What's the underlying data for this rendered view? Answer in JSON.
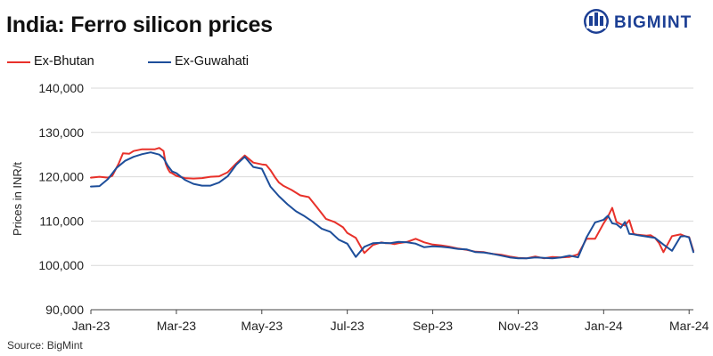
{
  "brand": {
    "name": "BIGMINT",
    "color": "#1c3f94"
  },
  "source": "Source: BigMint",
  "chart_data": {
    "type": "line",
    "title": "India: Ferro silicon prices",
    "xlabel": "",
    "ylabel": "Prices in INR/t",
    "ylim": [
      90000,
      140000
    ],
    "yticks": [
      90000,
      100000,
      110000,
      120000,
      130000,
      140000
    ],
    "ytick_labels": [
      "90,000",
      "100,000",
      "110,000",
      "120,000",
      "130,000",
      "140,000"
    ],
    "xlim": [
      0,
      14.1
    ],
    "x_unit": "months since Jan-2023",
    "xticks": [
      0,
      2,
      4,
      6,
      8,
      10,
      12,
      14
    ],
    "xtick_labels": [
      "Jan-23",
      "Mar-23",
      "May-23",
      "Jul-23",
      "Sep-23",
      "Nov-23",
      "Jan-24",
      "Mar-24"
    ],
    "grid": "horizontal",
    "legend_position": "top-left",
    "series": [
      {
        "name": "Ex-Bhutan",
        "color": "#e8312a",
        "x": [
          0,
          0.2,
          0.4,
          0.5,
          0.65,
          0.75,
          0.9,
          1.0,
          1.2,
          1.4,
          1.5,
          1.6,
          1.7,
          1.75,
          1.8,
          1.85,
          1.9,
          2.0,
          2.2,
          2.4,
          2.6,
          2.8,
          3.0,
          3.2,
          3.4,
          3.6,
          3.8,
          4.0,
          4.1,
          4.2,
          4.3,
          4.4,
          4.5,
          4.7,
          4.9,
          5.1,
          5.3,
          5.5,
          5.7,
          5.9,
          6.0,
          6.2,
          6.4,
          6.6,
          6.8,
          6.9,
          7.0,
          7.1,
          7.2,
          7.4,
          7.6,
          7.8,
          8.0,
          8.2,
          8.4,
          8.6,
          8.8,
          9.0,
          9.2,
          9.4,
          9.6,
          9.8,
          10.0,
          10.2,
          10.4,
          10.5,
          10.6,
          10.8,
          11.0,
          11.2,
          11.4,
          11.6,
          11.8,
          12.0,
          12.1,
          12.2,
          12.3,
          12.4,
          12.5,
          12.6,
          12.7,
          12.8,
          13.0,
          13.1,
          13.2,
          13.3,
          13.4,
          13.6,
          13.8,
          13.9,
          14.0,
          14.1
        ],
        "values": [
          119800,
          120000,
          119800,
          120200,
          123000,
          125300,
          125200,
          125800,
          126200,
          126200,
          126200,
          126500,
          125800,
          123000,
          121800,
          121000,
          120800,
          120200,
          119700,
          119600,
          119700,
          120000,
          120100,
          121000,
          123000,
          124800,
          123200,
          122800,
          122700,
          121500,
          120000,
          118700,
          118000,
          117000,
          115800,
          115400,
          113000,
          110500,
          109800,
          108600,
          107300,
          106200,
          102800,
          104600,
          105200,
          105000,
          105000,
          104800,
          105000,
          105300,
          106000,
          105200,
          104700,
          104500,
          104200,
          103800,
          103500,
          103100,
          103000,
          102600,
          102400,
          102000,
          101700,
          101600,
          102000,
          101800,
          101600,
          101900,
          101800,
          101900,
          102500,
          106000,
          106000,
          109500,
          111000,
          113000,
          109800,
          109300,
          109000,
          110200,
          107100,
          106900,
          106700,
          106800,
          106200,
          105000,
          103000,
          106600,
          107000,
          106600,
          106400,
          103300
        ]
      },
      {
        "name": "Ex-Guwahati",
        "color": "#1d4e9a",
        "x": [
          0,
          0.2,
          0.4,
          0.6,
          0.8,
          1.0,
          1.2,
          1.4,
          1.6,
          1.7,
          1.8,
          1.9,
          2.0,
          2.2,
          2.4,
          2.6,
          2.8,
          3.0,
          3.2,
          3.4,
          3.6,
          3.8,
          4.0,
          4.2,
          4.4,
          4.6,
          4.8,
          5.0,
          5.2,
          5.4,
          5.6,
          5.8,
          6.0,
          6.2,
          6.4,
          6.6,
          6.8,
          7.0,
          7.2,
          7.4,
          7.6,
          7.8,
          8.0,
          8.2,
          8.4,
          8.6,
          8.8,
          9.0,
          9.2,
          9.4,
          9.6,
          9.8,
          10.0,
          10.2,
          10.4,
          10.6,
          10.8,
          11.0,
          11.2,
          11.4,
          11.6,
          11.8,
          12.0,
          12.1,
          12.2,
          12.3,
          12.4,
          12.5,
          12.6,
          12.7,
          12.8,
          13.0,
          13.2,
          13.4,
          13.6,
          13.8,
          13.9,
          14.0,
          14.1
        ],
        "values": [
          117800,
          117900,
          119500,
          122000,
          123600,
          124500,
          125100,
          125500,
          125000,
          124200,
          122500,
          121200,
          120800,
          119300,
          118400,
          118000,
          118000,
          118700,
          120100,
          122700,
          124500,
          122200,
          121800,
          117800,
          115600,
          113800,
          112200,
          111100,
          109800,
          108300,
          107600,
          105800,
          104900,
          101900,
          104200,
          105000,
          105100,
          105000,
          105300,
          105200,
          104900,
          104100,
          104300,
          104200,
          104000,
          103700,
          103600,
          103000,
          102900,
          102600,
          102200,
          101800,
          101600,
          101600,
          101800,
          101700,
          101600,
          101800,
          102200,
          101800,
          106300,
          109700,
          110300,
          111200,
          109500,
          109300,
          108500,
          109800,
          107100,
          107000,
          106800,
          106500,
          106200,
          104700,
          103300,
          106500,
          106600,
          106300,
          103000
        ]
      }
    ]
  }
}
